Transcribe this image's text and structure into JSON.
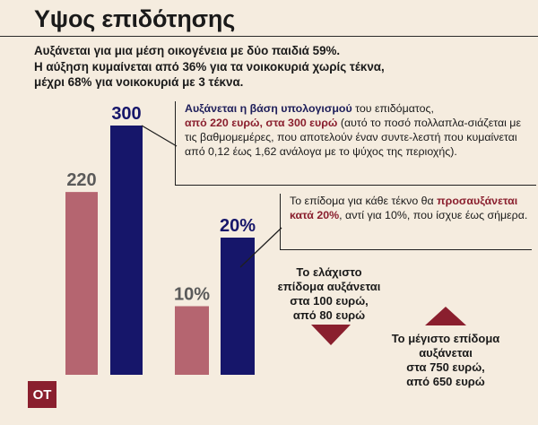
{
  "title": "Υψος επιδότησης",
  "intro": [
    "Αυξάνεται για μια μέση οικογένεια με δύο παιδιά 59%.",
    "Η αύξηση κυμαίνεται από 36% για τα νοικοκυριά χωρίς τέκνα,",
    "μέχρι 68% για νοικοκυριά με 3 τέκνα."
  ],
  "box1": {
    "part1": "Αυξάνεται η βάση υπολογισμού",
    "part2": " του επιδόματος,",
    "part3": "από 220 ευρώ, στα 300 ευρώ",
    "part4": " (αυτό το ποσό πολλαπλα-σιάζεται με τις βαθμομεμέρες, που αποτελούν έναν συντε-λεστή που κυμαίνεται από 0,12 έως 1,62 ανάλογα με το ψύχος της περιοχής)."
  },
  "box2": {
    "part1": "Το επίδομα για κάθε τέκνο θα ",
    "part2": "προσαυξάνεται κατά 20%",
    "part3": ", αντί για 10%, που ίσχυε έως σήμερα."
  },
  "min_note": [
    "Το ελάχιστο",
    "επίδομα αυξάνεται",
    "στα 100 ευρώ,",
    "από 80 ευρώ"
  ],
  "max_note": [
    "Το μέγιστο επίδομα",
    "αυξάνεται",
    "στα 750 ευρώ,",
    "από 650 ευρώ"
  ],
  "logo": "ΟΤ",
  "colors": {
    "old": "#b56570",
    "new": "#16166a",
    "arrow": "#8a1f2e"
  },
  "chart_data": [
    {
      "type": "bar",
      "categories": [
        "",
        ""
      ],
      "values": [
        220,
        300
      ],
      "labels": [
        "220",
        "300"
      ],
      "ylim": [
        0,
        300
      ]
    },
    {
      "type": "bar",
      "categories": [
        "",
        ""
      ],
      "values": [
        10,
        20
      ],
      "labels": [
        "10%",
        "20%"
      ],
      "ylim": [
        0,
        20
      ]
    }
  ]
}
